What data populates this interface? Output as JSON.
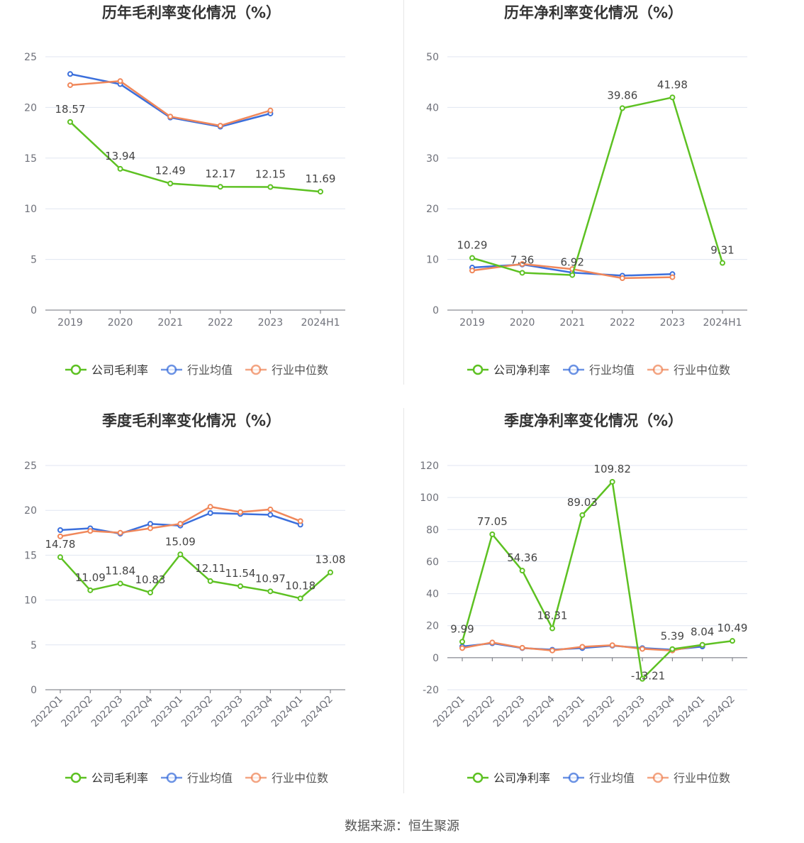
{
  "source_text": "数据来源：恒生聚源",
  "colors": {
    "company": "#5dc122",
    "avg": "#3b6fdc",
    "median": "#f0875a"
  },
  "chart_data": [
    {
      "type": "line",
      "title": "历年毛利率变化情况（%）",
      "categories": [
        "2019",
        "2020",
        "2021",
        "2022",
        "2023",
        "2024H1"
      ],
      "ylim": [
        0,
        25
      ],
      "yticks": [
        0,
        5,
        10,
        15,
        20,
        25
      ],
      "grid": true,
      "legend_position": "bottom",
      "rotate_x_labels": false,
      "series": [
        {
          "name": "公司毛利率",
          "color": "#5dc122",
          "values": [
            18.57,
            13.94,
            12.49,
            12.17,
            12.15,
            11.69
          ],
          "labels": [
            "18.57",
            "13.94",
            "12.49",
            "12.17",
            "12.15",
            "11.69"
          ]
        },
        {
          "name": "行业均值",
          "color": "#3b6fdc",
          "values": [
            23.3,
            22.3,
            19.0,
            18.1,
            19.4,
            null
          ]
        },
        {
          "name": "行业中位数",
          "color": "#f0875a",
          "values": [
            22.2,
            22.6,
            19.1,
            18.2,
            19.7,
            null
          ]
        }
      ]
    },
    {
      "type": "line",
      "title": "历年净利率变化情况（%）",
      "categories": [
        "2019",
        "2020",
        "2021",
        "2022",
        "2023",
        "2024H1"
      ],
      "ylim": [
        0,
        50
      ],
      "yticks": [
        0,
        10,
        20,
        30,
        40,
        50
      ],
      "grid": true,
      "legend_position": "bottom",
      "rotate_x_labels": false,
      "series": [
        {
          "name": "公司净利率",
          "color": "#5dc122",
          "values": [
            10.29,
            7.36,
            6.92,
            39.86,
            41.98,
            9.31
          ],
          "labels": [
            "10.29",
            "7.36",
            "6.92",
            "39.86",
            "41.98",
            "9.31"
          ]
        },
        {
          "name": "行业均值",
          "color": "#3b6fdc",
          "values": [
            8.4,
            9.0,
            7.4,
            6.8,
            7.1,
            null
          ]
        },
        {
          "name": "行业中位数",
          "color": "#f0875a",
          "values": [
            7.8,
            9.1,
            8.1,
            6.3,
            6.5,
            null
          ]
        }
      ]
    },
    {
      "type": "line",
      "title": "季度毛利率变化情况（%）",
      "categories": [
        "2022Q1",
        "2022Q2",
        "2022Q3",
        "2022Q4",
        "2023Q1",
        "2023Q2",
        "2023Q3",
        "2023Q4",
        "2024Q1",
        "2024Q2"
      ],
      "ylim": [
        0,
        25
      ],
      "yticks": [
        0,
        5,
        10,
        15,
        20,
        25
      ],
      "grid": true,
      "legend_position": "bottom",
      "rotate_x_labels": true,
      "series": [
        {
          "name": "公司毛利率",
          "color": "#5dc122",
          "values": [
            14.78,
            11.09,
            11.84,
            10.83,
            15.09,
            12.11,
            11.54,
            10.97,
            10.18,
            13.08
          ],
          "labels": [
            "14.78",
            "11.09",
            "11.84",
            "10.83",
            "15.09",
            "12.11",
            "11.54",
            "10.97",
            "10.18",
            "13.08"
          ]
        },
        {
          "name": "行业均值",
          "color": "#3b6fdc",
          "values": [
            17.8,
            18.0,
            17.4,
            18.5,
            18.3,
            19.7,
            19.6,
            19.5,
            18.4,
            null
          ]
        },
        {
          "name": "行业中位数",
          "color": "#f0875a",
          "values": [
            17.1,
            17.7,
            17.5,
            18.0,
            18.5,
            20.4,
            19.8,
            20.1,
            18.8,
            null
          ]
        }
      ]
    },
    {
      "type": "line",
      "title": "季度净利率变化情况（%）",
      "categories": [
        "2022Q1",
        "2022Q2",
        "2022Q3",
        "2022Q4",
        "2023Q1",
        "2023Q2",
        "2023Q3",
        "2023Q4",
        "2024Q1",
        "2024Q2"
      ],
      "ylim": [
        -20,
        120
      ],
      "yticks": [
        -20,
        0,
        20,
        40,
        60,
        80,
        100,
        120
      ],
      "grid": true,
      "legend_position": "bottom",
      "rotate_x_labels": true,
      "series": [
        {
          "name": "公司净利率",
          "color": "#5dc122",
          "values": [
            9.99,
            77.05,
            54.36,
            18.31,
            89.03,
            109.82,
            -13.21,
            5.39,
            8.04,
            10.49
          ],
          "labels": [
            "9.99",
            "77.05",
            "54.36",
            "18.31",
            "89.03",
            "109.82",
            "-13.21",
            "5.39",
            "8.04",
            "10.49"
          ]
        },
        {
          "name": "行业均值",
          "color": "#3b6fdc",
          "values": [
            7.0,
            9.0,
            6.0,
            5.0,
            6.0,
            7.5,
            6.0,
            5.0,
            7.0,
            null
          ]
        },
        {
          "name": "行业中位数",
          "color": "#f0875a",
          "values": [
            6.0,
            9.5,
            6.2,
            4.5,
            6.8,
            7.8,
            5.5,
            4.5,
            8.0,
            null
          ]
        }
      ]
    }
  ]
}
